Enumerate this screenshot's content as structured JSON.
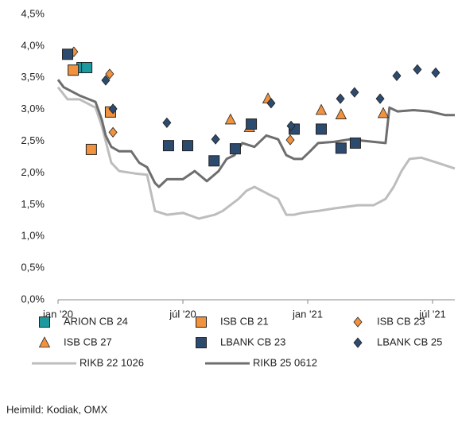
{
  "chart_data": {
    "type": "scatter",
    "source": "Heimild: Kodiak, OMX",
    "xlim": [
      0,
      19.07
    ],
    "xticks": [
      {
        "value": 0,
        "label": "jan '20"
      },
      {
        "value": 6,
        "label": "júl '20"
      },
      {
        "value": 12,
        "label": "jan '21"
      },
      {
        "value": 18,
        "label": "júl '21"
      }
    ],
    "ylim": [
      0,
      4.5
    ],
    "yticks": [
      {
        "value": 0,
        "label": "0,0%"
      },
      {
        "value": 0.5,
        "label": "0,5%"
      },
      {
        "value": 1,
        "label": "1,0%"
      },
      {
        "value": 1.5,
        "label": "1,5%"
      },
      {
        "value": 2,
        "label": "2,0%"
      },
      {
        "value": 2.5,
        "label": "2,5%"
      },
      {
        "value": 3,
        "label": "3,0%"
      },
      {
        "value": 3.5,
        "label": "3,5%"
      },
      {
        "value": 4,
        "label": "4,0%"
      },
      {
        "value": 4.5,
        "label": "4,5%"
      }
    ],
    "grid": false,
    "series": [
      {
        "name": "RIKB 22 1026",
        "mode": "line",
        "color": "#bdbdbd",
        "x": [
          0,
          0.46,
          1.03,
          1.8,
          2.1,
          2.56,
          2.94,
          3.71,
          4.28,
          4.66,
          5.24,
          6.0,
          6.76,
          7.53,
          7.91,
          8.67,
          9.06,
          9.44,
          10.2,
          10.58,
          10.97,
          11.35,
          11.73,
          12.5,
          13.26,
          14.41,
          15.17,
          15.74,
          16.13,
          16.51,
          16.89,
          17.46,
          18.23,
          19.07
        ],
        "values": [
          3.35,
          3.16,
          3.16,
          3.03,
          2.74,
          2.16,
          2.03,
          1.99,
          1.97,
          1.4,
          1.34,
          1.37,
          1.28,
          1.34,
          1.4,
          1.59,
          1.72,
          1.78,
          1.65,
          1.59,
          1.34,
          1.34,
          1.37,
          1.4,
          1.44,
          1.49,
          1.49,
          1.59,
          1.78,
          2.03,
          2.22,
          2.24,
          2.16,
          2.07
        ]
      },
      {
        "name": "RIKB 25 0612",
        "mode": "line",
        "color": "#6e6e6e",
        "x": [
          0,
          0.27,
          1.03,
          1.8,
          2.1,
          2.29,
          2.56,
          2.94,
          3.52,
          3.9,
          4.28,
          4.66,
          4.85,
          5.24,
          6.0,
          6.57,
          7.15,
          7.72,
          8.1,
          8.48,
          8.86,
          9.44,
          10.01,
          10.58,
          10.97,
          11.35,
          11.73,
          12.11,
          12.5,
          13.26,
          14.02,
          15.17,
          15.74,
          15.93,
          16.32,
          17.08,
          17.85,
          18.61,
          19.07
        ],
        "values": [
          3.47,
          3.35,
          3.22,
          3.12,
          2.84,
          2.59,
          2.41,
          2.34,
          2.34,
          2.16,
          2.09,
          1.84,
          1.78,
          1.9,
          1.9,
          2.03,
          1.87,
          2.03,
          2.22,
          2.28,
          2.47,
          2.41,
          2.59,
          2.53,
          2.28,
          2.22,
          2.22,
          2.34,
          2.47,
          2.49,
          2.53,
          2.49,
          2.47,
          3.03,
          2.97,
          2.99,
          2.97,
          2.91,
          2.91
        ]
      },
      {
        "name": "ARION CB 24",
        "mode": "markers",
        "marker": "square",
        "color": "#1c9aa0",
        "x": [
          1.15,
          1.38
        ],
        "values": [
          3.66,
          3.66
        ]
      },
      {
        "name": "ISB CB 21",
        "mode": "markers",
        "marker": "square",
        "color": "#f0923e",
        "x": [
          0.73,
          2.52,
          1.6
        ],
        "values": [
          3.62,
          2.96,
          2.37
        ]
      },
      {
        "name": "ISB CB 23",
        "mode": "markers",
        "marker": "diamond",
        "color": "#f0923e",
        "x": [
          0.76,
          2.48,
          2.64,
          11.16
        ],
        "values": [
          3.91,
          3.56,
          2.64,
          2.52
        ]
      },
      {
        "name": "ISB CB 27",
        "mode": "markers",
        "marker": "triangle",
        "color": "#f0923e",
        "x": [
          8.29,
          9.2,
          10.09,
          12.65,
          13.6,
          15.63
        ],
        "values": [
          2.84,
          2.72,
          3.17,
          2.99,
          2.92,
          2.94
        ]
      },
      {
        "name": "LBANK CB 23",
        "mode": "markers",
        "marker": "square",
        "color": "#2d4a6f",
        "x": [
          0.46,
          5.31,
          6.23,
          7.5,
          8.52,
          9.29,
          11.35,
          12.65,
          13.6,
          14.29
        ],
        "values": [
          3.87,
          2.43,
          2.43,
          2.19,
          2.38,
          2.77,
          2.69,
          2.69,
          2.39,
          2.47
        ]
      },
      {
        "name": "LBANK CB 25",
        "mode": "markers",
        "marker": "diamond",
        "color": "#2d4a6f",
        "x": [
          2.29,
          2.64,
          5.23,
          7.57,
          10.24,
          11.2,
          13.57,
          14.25,
          15.48,
          16.28,
          17.27,
          18.15
        ],
        "values": [
          3.46,
          3.01,
          2.79,
          2.53,
          3.1,
          2.74,
          3.17,
          3.27,
          3.17,
          3.53,
          3.63,
          3.58
        ]
      }
    ]
  }
}
